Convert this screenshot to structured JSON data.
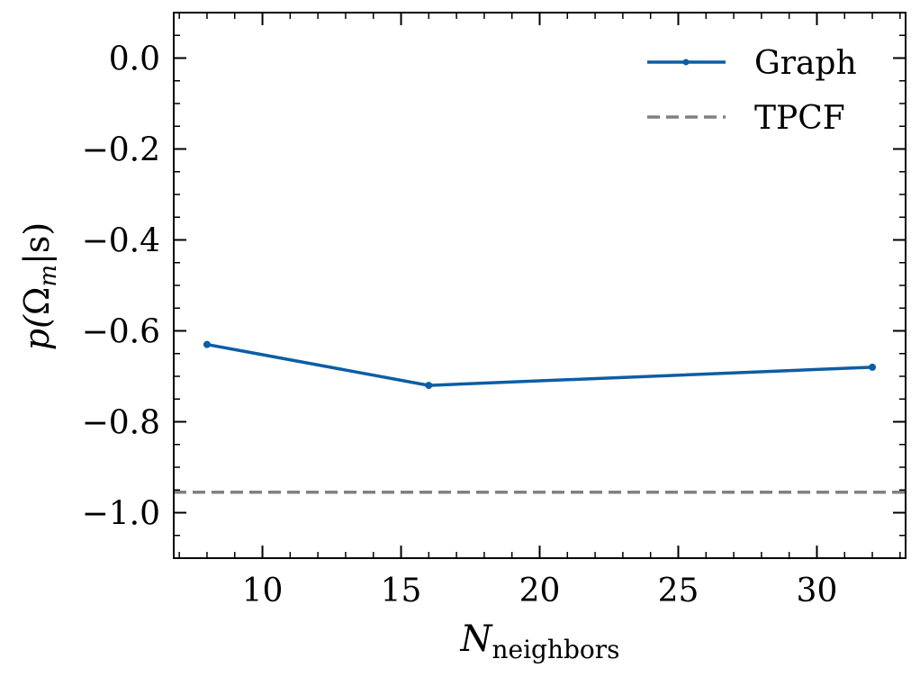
{
  "chart_data": {
    "type": "line",
    "title": "",
    "xlabel": {
      "main": "N",
      "sub": "neighbors"
    },
    "ylabel": {
      "p": "p(",
      "omega": "Ω",
      "sub": "m",
      "rest": "|s)"
    },
    "xlim": [
      6.8,
      33.2
    ],
    "ylim": [
      -1.1,
      0.1
    ],
    "xticks": [
      10,
      15,
      20,
      25,
      30
    ],
    "xtick_labels": [
      "10",
      "15",
      "20",
      "25",
      "30"
    ],
    "yticks": [
      0.0,
      -0.2,
      -0.4,
      -0.6,
      -0.8,
      -1.0
    ],
    "ytick_labels": [
      "0.0",
      "−0.2",
      "−0.4",
      "−0.6",
      "−0.8",
      "−1.0"
    ],
    "series": [
      {
        "name": "Graph",
        "x": [
          8,
          16,
          32
        ],
        "values": [
          -0.63,
          -0.72,
          -0.68
        ],
        "color": "#0C5DA5",
        "style": "solid-marker"
      }
    ],
    "reference_lines": [
      {
        "name": "TPCF",
        "y": -0.955,
        "color": "#808080",
        "style": "dashed"
      }
    ],
    "legend": {
      "position": "top-right",
      "entries": [
        "Graph",
        "TPCF"
      ]
    },
    "grid": false
  }
}
